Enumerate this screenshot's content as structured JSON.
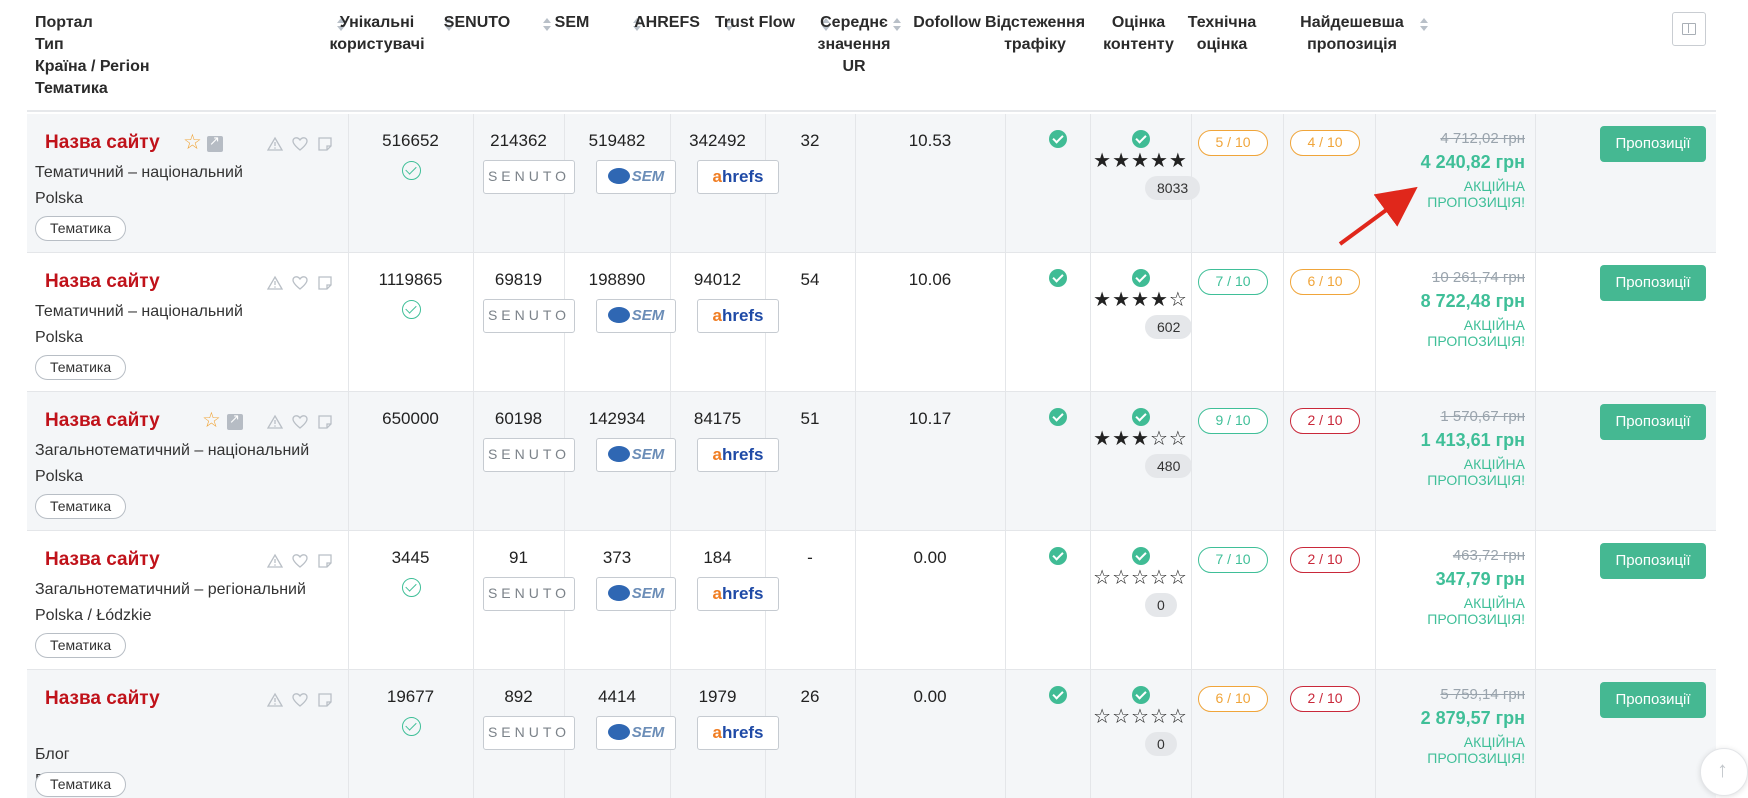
{
  "header": {
    "portal_lines": [
      "Портал",
      "Тип",
      "Країна / Регіон",
      "Тематика"
    ],
    "unique_users": [
      "Унікальні",
      "користувачі"
    ],
    "senuto": "SENUTO",
    "sem": "SEM",
    "ahrefs": "AHREFS",
    "trust_flow": "Trust Flow",
    "avg_ur": [
      "Середнє",
      "значення",
      "UR"
    ],
    "dofollow": "Dofollow",
    "traffic": [
      "Відстеження",
      "трафіку"
    ],
    "content": [
      "Оцінка",
      "контенту"
    ],
    "technical": [
      "Технічна",
      "оцінка"
    ],
    "cheapest": [
      "Найдешевша",
      "пропозиція"
    ]
  },
  "logos": {
    "senuto": "SENUTO",
    "sem": "SEM",
    "ahrefs_a": "a",
    "ahrefs_rest": "hrefs"
  },
  "rows": [
    {
      "name": "Назва сайту",
      "type": "Тематичний – національний",
      "region": "Polska",
      "theme": "Тематика",
      "users": "516652",
      "senuto": "214362",
      "sem": "519482",
      "ahrefs": "342492",
      "trust_flow": "32",
      "ur": "10.53",
      "stars": "★★★★★",
      "star_rating": 5,
      "traffic_count": "8033",
      "content_score": "5 / 10",
      "tech_score": "4 / 10",
      "old_price": "4 712,02 грн",
      "new_price": "4 240,82 грн",
      "promo": "АКЦІЙНА ПРОПОЗИЦІЯ!",
      "button": "Пропозиції"
    },
    {
      "name": "Назва сайту",
      "type": "Тематичний – національний",
      "region": "Polska",
      "theme": "Тематика",
      "users": "1119865",
      "senuto": "69819",
      "sem": "198890",
      "ahrefs": "94012",
      "trust_flow": "54",
      "ur": "10.06",
      "stars": "★★★★☆",
      "star_rating": 4,
      "traffic_count": "602",
      "content_score": "7 / 10",
      "tech_score": "6 / 10",
      "old_price": "10 261,74 грн",
      "new_price": "8 722,48 грн",
      "promo": "АКЦІЙНА ПРОПОЗИЦІЯ!",
      "button": "Пропозиції"
    },
    {
      "name": "Назва сайту",
      "type": "Загальнотематичний – національний",
      "region": "Polska",
      "theme": "Тематика",
      "users": "650000",
      "senuto": "60198",
      "sem": "142934",
      "ahrefs": "84175",
      "trust_flow": "51",
      "ur": "10.17",
      "stars": "★★★☆☆",
      "star_rating": 3,
      "traffic_count": "480",
      "content_score": "9 / 10",
      "tech_score": "2 / 10",
      "old_price": "1 570,67 грн",
      "new_price": "1 413,61 грн",
      "promo": "АКЦІЙНА ПРОПОЗИЦІЯ!",
      "button": "Пропозиції"
    },
    {
      "name": "Назва сайту",
      "type": "Загальнотематичний – регіональний",
      "region": "Polska / Łódzkie",
      "theme": "Тематика",
      "users": "3445",
      "senuto": "91",
      "sem": "373",
      "ahrefs": "184",
      "trust_flow": "-",
      "ur": "0.00",
      "stars": "☆☆☆☆☆",
      "star_rating": 0,
      "traffic_count": "0",
      "content_score": "7 / 10",
      "tech_score": "2 / 10",
      "old_price": "463,72 грн",
      "new_price": "347,79 грн",
      "promo": "АКЦІЙНА ПРОПОЗИЦІЯ!",
      "button": "Пропозиції"
    },
    {
      "name": "Назва сайту",
      "type": "Блог",
      "region": "Polska",
      "theme": "Тематика",
      "users": "19677",
      "senuto": "892",
      "sem": "4414",
      "ahrefs": "1979",
      "trust_flow": "26",
      "ur": "0.00",
      "stars": "☆☆☆☆☆",
      "star_rating": 0,
      "traffic_count": "0",
      "content_score": "6 / 10",
      "tech_score": "2 / 10",
      "old_price": "5 759,14 грн",
      "new_price": "2 879,57 грн",
      "promo": "АКЦІЙНА ПРОПОЗИЦІЯ!",
      "button": "Пропозиції"
    }
  ],
  "colors": {
    "site_name": "#c0121a",
    "accent_green": "#3fbf98",
    "score_orange": "#f0a53a",
    "score_red": "#c9283a",
    "annotation_arrow": "#e0271b"
  }
}
